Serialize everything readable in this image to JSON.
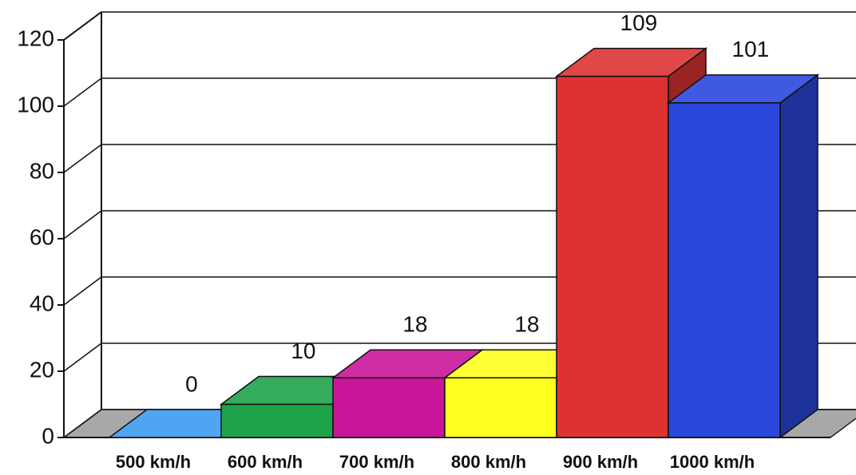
{
  "chart_data": {
    "type": "bar3d",
    "categories": [
      "500 km/h",
      "600 km/h",
      "700 km/h",
      "800 km/h",
      "900 km/h",
      "1000 km/h"
    ],
    "values": [
      0,
      10,
      18,
      18,
      109,
      101
    ],
    "colors": [
      "#3d9bf0",
      "#1fa34a",
      "#c8169a",
      "#ffff1e",
      "#dc3232",
      "#2a48dc"
    ],
    "ylim": [
      0,
      120
    ],
    "yticks": [
      0,
      20,
      40,
      60,
      80,
      100,
      120
    ],
    "grid": true
  }
}
